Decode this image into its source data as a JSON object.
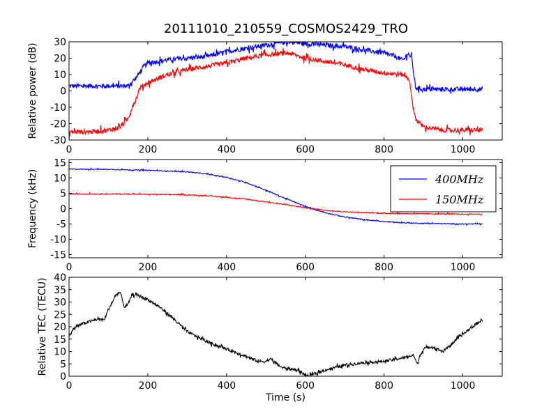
{
  "title": "20111010_210559_COSMOS2429_TRO",
  "chart_data": [
    {
      "type": "line",
      "ylabel": "Relative power (dB)",
      "xlabel": "",
      "xlim": [
        0,
        1100
      ],
      "ylim": [
        -30,
        30
      ],
      "xticks": [
        "0",
        "200",
        "400",
        "600",
        "800",
        "1000"
      ],
      "yticks": [
        "-30",
        "-20",
        "-10",
        "0",
        "10",
        "20",
        "30"
      ],
      "noise": 1.4,
      "series": [
        {
          "color": "#0000ff",
          "x": [
            0,
            60,
            120,
            150,
            170,
            190,
            200,
            250,
            300,
            350,
            400,
            450,
            500,
            540,
            560,
            600,
            650,
            700,
            750,
            800,
            830,
            845,
            850,
            860,
            870,
            880,
            900,
            950,
            1000,
            1050
          ],
          "values": [
            3,
            3,
            3,
            3,
            8,
            15,
            17,
            19,
            20,
            21,
            24,
            26,
            28,
            29.5,
            30,
            29,
            28,
            27,
            25,
            23,
            21,
            19,
            19,
            23,
            20,
            2,
            1,
            1,
            1,
            1
          ]
        },
        {
          "color": "#ff0000",
          "x": [
            0,
            50,
            100,
            130,
            150,
            160,
            170,
            180,
            200,
            250,
            300,
            350,
            400,
            450,
            500,
            550,
            560,
            600,
            650,
            700,
            750,
            800,
            850,
            865,
            870,
            880,
            900,
            950,
            1000,
            1050
          ],
          "values": [
            -25,
            -25,
            -24,
            -22,
            -17,
            -10,
            -5,
            2,
            5,
            10,
            13,
            15,
            17,
            20,
            22,
            23,
            23,
            20,
            18,
            16,
            13,
            11,
            10,
            7,
            -5,
            -17,
            -22,
            -24,
            -24,
            -24
          ]
        }
      ]
    },
    {
      "type": "line",
      "ylabel": "Frequency (kHz)",
      "xlabel": "",
      "xlim": [
        0,
        1100
      ],
      "ylim": [
        -16,
        16
      ],
      "xticks": [
        "0",
        "200",
        "400",
        "600",
        "800",
        "1000"
      ],
      "yticks": [
        "-15",
        "-10",
        "-5",
        "0",
        "5",
        "10",
        "15"
      ],
      "legend": "top-right",
      "noise": 0.15,
      "series": [
        {
          "name": "400MHz",
          "color": "#0000ff",
          "x": [
            0,
            100,
            200,
            300,
            350,
            400,
            450,
            500,
            550,
            600,
            650,
            700,
            750,
            800,
            850,
            900,
            950,
            1000,
            1050
          ],
          "values": [
            12.9,
            12.8,
            12.5,
            12,
            11.3,
            10.2,
            8.5,
            6,
            3.3,
            0.7,
            -1.3,
            -2.7,
            -3.6,
            -4.2,
            -4.6,
            -4.8,
            -4.9,
            -5,
            -5
          ]
        },
        {
          "name": "150MHz",
          "color": "#ff0000",
          "x": [
            0,
            100,
            200,
            300,
            350,
            400,
            450,
            500,
            550,
            600,
            650,
            700,
            750,
            800,
            850,
            900,
            950,
            1000,
            1050
          ],
          "values": [
            4.8,
            4.8,
            4.7,
            4.5,
            4.2,
            3.7,
            3.1,
            2.2,
            1.3,
            0.3,
            -0.5,
            -1,
            -1.3,
            -1.5,
            -1.6,
            -1.7,
            -1.7,
            -1.8,
            -1.8
          ]
        }
      ]
    },
    {
      "type": "line",
      "ylabel": "Relative TEC (TECU)",
      "xlabel": "Time (s)",
      "xlim": [
        0,
        1100
      ],
      "ylim": [
        0,
        40
      ],
      "xticks": [
        "0",
        "200",
        "400",
        "600",
        "800",
        "1000"
      ],
      "yticks": [
        "0",
        "5",
        "10",
        "15",
        "20",
        "25",
        "30",
        "35",
        "40"
      ],
      "noise": 0.6,
      "series": [
        {
          "color": "#000000",
          "x": [
            0,
            10,
            30,
            50,
            70,
            90,
            100,
            110,
            120,
            130,
            140,
            150,
            160,
            170,
            200,
            230,
            260,
            300,
            350,
            400,
            450,
            480,
            500,
            510,
            520,
            540,
            560,
            580,
            600,
            610,
            620,
            650,
            700,
            750,
            800,
            850,
            875,
            885,
            890,
            900,
            920,
            950,
            1000,
            1050
          ],
          "values": [
            16,
            19,
            21,
            22,
            23,
            23,
            27,
            30,
            33,
            34,
            28,
            29,
            33,
            33,
            31,
            28,
            24,
            18,
            14,
            11,
            8,
            6,
            6,
            7,
            6,
            3.5,
            3,
            2.5,
            0.5,
            0,
            0.7,
            2.5,
            4.5,
            5.5,
            6,
            7.5,
            8.5,
            4.5,
            8,
            11,
            12,
            10,
            17,
            23
          ]
        }
      ]
    }
  ]
}
